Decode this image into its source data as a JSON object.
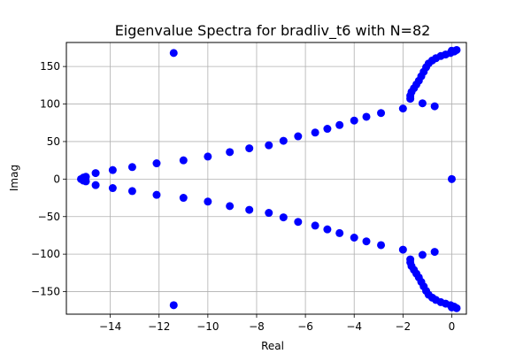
{
  "chart_data": {
    "type": "scatter",
    "title": "Eigenvalue Spectra for bradliv_t6 with N=82",
    "xlabel": "Real",
    "ylabel": "Imag",
    "xlim": [
      -15.8,
      0.6
    ],
    "ylim": [
      -180,
      182
    ],
    "xticks": [
      -14,
      -12,
      -10,
      -8,
      -6,
      -4,
      -2,
      0
    ],
    "xtick_labels": [
      "−14",
      "−12",
      "−10",
      "−8",
      "−6",
      "−4",
      "−2",
      "0"
    ],
    "yticks": [
      -150,
      -100,
      -50,
      0,
      50,
      100,
      150
    ],
    "ytick_labels": [
      "−150",
      "−100",
      "−50",
      "0",
      "50",
      "100",
      "150"
    ],
    "grid": true,
    "marker_color": "#0000ff",
    "points": [
      [
        0,
        0
      ],
      [
        -15.2,
        0
      ],
      [
        -15.1,
        2
      ],
      [
        -15.1,
        -2
      ],
      [
        -15.0,
        3
      ],
      [
        -15.0,
        -3
      ],
      [
        -14.6,
        8
      ],
      [
        -14.6,
        -8
      ],
      [
        -13.9,
        12
      ],
      [
        -13.9,
        -12
      ],
      [
        -13.1,
        16
      ],
      [
        -13.1,
        -16
      ],
      [
        -12.1,
        21
      ],
      [
        -12.1,
        -21
      ],
      [
        -11.0,
        25
      ],
      [
        -11.0,
        -25
      ],
      [
        -10.0,
        30
      ],
      [
        -10.0,
        -30
      ],
      [
        -9.1,
        36
      ],
      [
        -9.1,
        -36
      ],
      [
        -8.3,
        41
      ],
      [
        -8.3,
        -41
      ],
      [
        -7.5,
        45
      ],
      [
        -7.5,
        -45
      ],
      [
        -6.9,
        51
      ],
      [
        -6.9,
        -51
      ],
      [
        -6.3,
        57
      ],
      [
        -6.3,
        -57
      ],
      [
        -5.6,
        62
      ],
      [
        -5.6,
        -62
      ],
      [
        -5.1,
        67
      ],
      [
        -5.1,
        -67
      ],
      [
        -4.6,
        72
      ],
      [
        -4.6,
        -72
      ],
      [
        -4.0,
        78
      ],
      [
        -4.0,
        -78
      ],
      [
        -3.5,
        83
      ],
      [
        -3.5,
        -83
      ],
      [
        -2.9,
        88
      ],
      [
        -2.9,
        -88
      ],
      [
        -2.0,
        94
      ],
      [
        -2.0,
        -94
      ],
      [
        -11.4,
        168
      ],
      [
        -11.4,
        -168
      ],
      [
        -1.2,
        101
      ],
      [
        -1.2,
        -101
      ],
      [
        -0.7,
        97
      ],
      [
        -0.7,
        -97
      ],
      [
        -1.7,
        107
      ],
      [
        -1.7,
        -107
      ],
      [
        -1.7,
        111
      ],
      [
        -1.7,
        -111
      ],
      [
        -1.65,
        116
      ],
      [
        -1.65,
        -116
      ],
      [
        -1.55,
        121
      ],
      [
        -1.55,
        -121
      ],
      [
        -1.45,
        126
      ],
      [
        -1.45,
        -126
      ],
      [
        -1.35,
        131
      ],
      [
        -1.35,
        -131
      ],
      [
        -1.25,
        137
      ],
      [
        -1.25,
        -137
      ],
      [
        -1.15,
        143
      ],
      [
        -1.15,
        -143
      ],
      [
        -1.05,
        149
      ],
      [
        -1.05,
        -149
      ],
      [
        -0.95,
        154
      ],
      [
        -0.95,
        -154
      ],
      [
        -0.8,
        158
      ],
      [
        -0.8,
        -158
      ],
      [
        -0.65,
        161
      ],
      [
        -0.65,
        -161
      ],
      [
        -0.45,
        164
      ],
      [
        -0.45,
        -164
      ],
      [
        -0.25,
        166
      ],
      [
        -0.25,
        -166
      ],
      [
        -0.05,
        168
      ],
      [
        -0.05,
        -168
      ],
      [
        0.1,
        170
      ],
      [
        0.1,
        -170
      ],
      [
        0.2,
        172
      ],
      [
        0.2,
        -172
      ],
      [
        0.0,
        171
      ],
      [
        0.0,
        -171
      ]
    ]
  }
}
